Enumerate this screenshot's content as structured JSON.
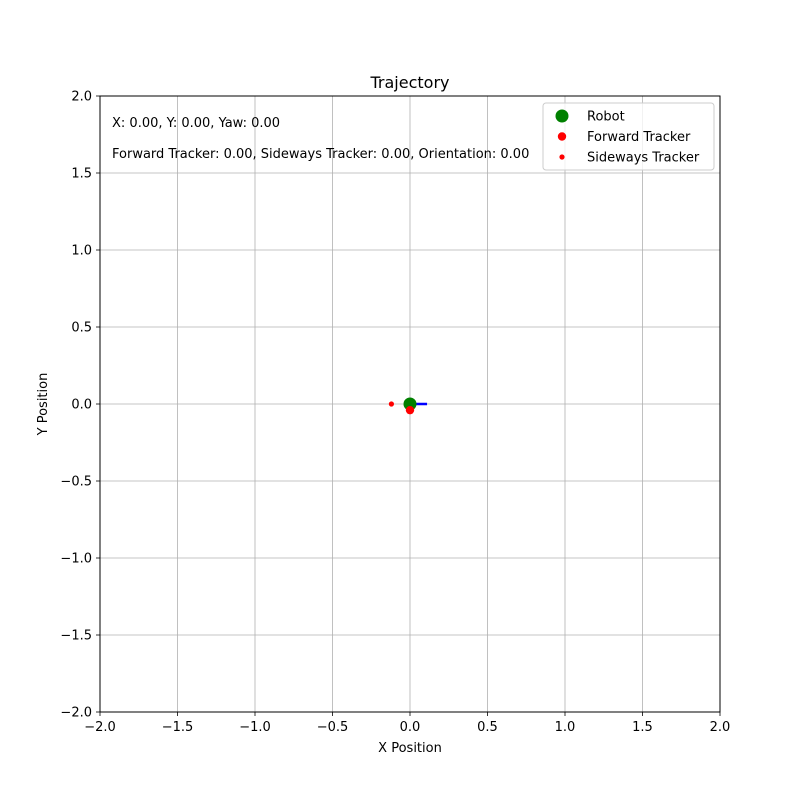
{
  "chart_data": {
    "type": "scatter",
    "title": "Trajectory",
    "xlabel": "X Position",
    "ylabel": "Y Position",
    "xlim": [
      -2.0,
      2.0
    ],
    "ylim": [
      -2.0,
      2.0
    ],
    "xticks": [
      -2.0,
      -1.5,
      -1.0,
      -0.5,
      0.0,
      0.5,
      1.0,
      1.5,
      2.0
    ],
    "yticks": [
      -2.0,
      -1.5,
      -1.0,
      -0.5,
      0.0,
      0.5,
      1.0,
      1.5,
      2.0
    ],
    "xtick_labels": [
      "−2.0",
      "−1.5",
      "−1.0",
      "−0.5",
      "0.0",
      "0.5",
      "1.0",
      "1.5",
      "2.0"
    ],
    "ytick_labels": [
      "−2.0",
      "−1.5",
      "−1.0",
      "−0.5",
      "0.0",
      "0.5",
      "1.0",
      "1.5",
      "2.0"
    ],
    "grid": true,
    "legend_position": "top-right",
    "series": [
      {
        "name": "Robot",
        "color": "#008000",
        "marker": "large-circle",
        "points": [
          {
            "x": 0.0,
            "y": 0.0
          }
        ]
      },
      {
        "name": "Forward Tracker",
        "color": "#ff0000",
        "marker": "medium-circle",
        "points": [
          {
            "x": 0.0,
            "y": -0.04
          }
        ]
      },
      {
        "name": "Sideways Tracker",
        "color": "#ff0000",
        "marker": "small-circle",
        "points": [
          {
            "x": -0.12,
            "y": 0.0
          }
        ]
      }
    ],
    "heading_line": {
      "color": "#0000ff",
      "from": {
        "x": 0.0,
        "y": 0.0
      },
      "to": {
        "x": 0.11,
        "y": 0.0
      }
    },
    "annotations": [
      "X: 0.00, Y: 0.00, Yaw: 0.00",
      "Forward Tracker: 0.00, Sideways Tracker: 0.00, Orientation: 0.00"
    ]
  }
}
